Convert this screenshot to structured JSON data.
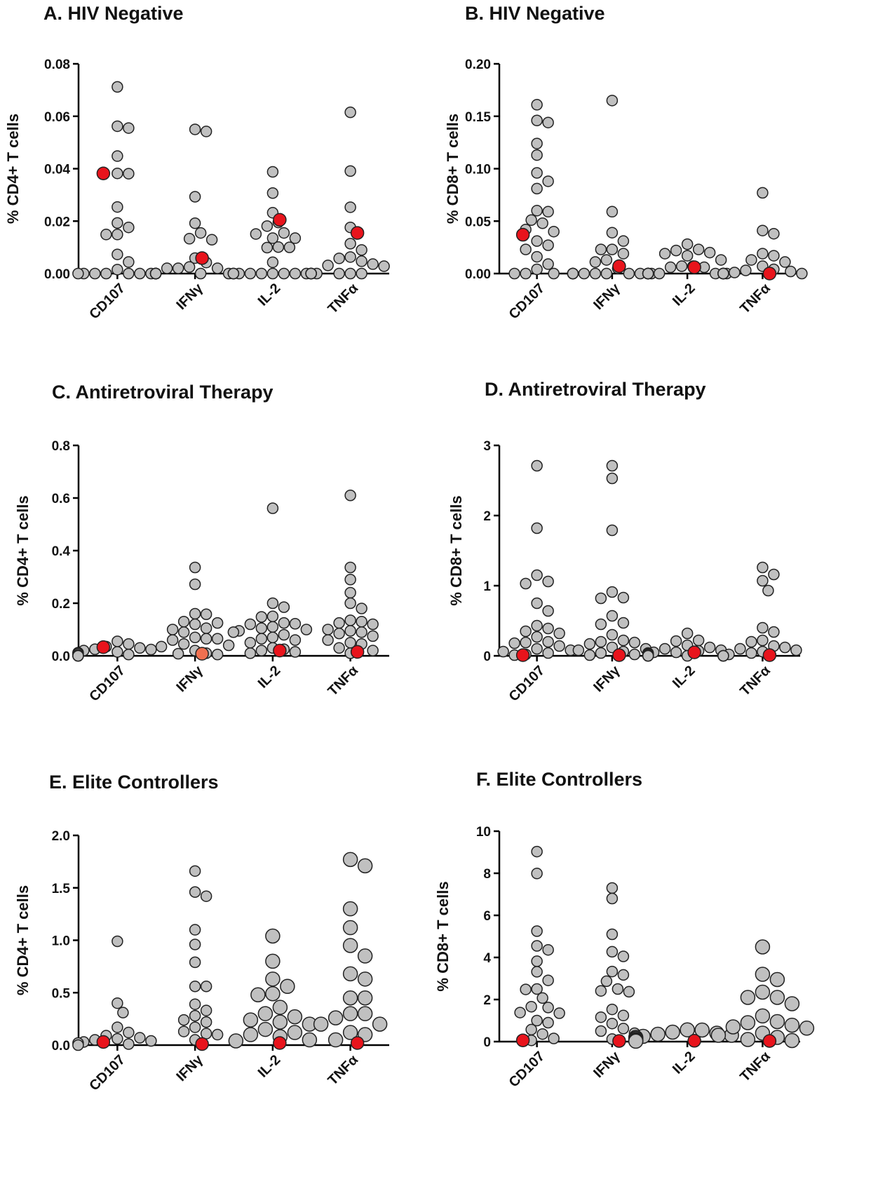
{
  "chart_data": [
    {
      "type": "scatter",
      "title": "A. HIV Negative",
      "ylabel": "% CD4+ T cells",
      "ylim": [
        0,
        0.08
      ],
      "yticks": [
        "0.00",
        "0.02",
        "0.04",
        "0.06",
        "0.08"
      ],
      "categories": [
        "CD107",
        "IFNγ",
        "IL-2",
        "TNFα"
      ],
      "highlight_color": "#e8141c",
      "point_color": "#c0c0c0",
      "series": [
        {
          "values": [
            0.0712,
            0.0562,
            0.0555,
            0.0448,
            0.0382,
            0.0381,
            0.0254,
            0.0193,
            0.0176,
            0.0149,
            0.0149,
            0.0073,
            0.0044,
            0.0015,
            0,
            0,
            0,
            0,
            0,
            0,
            0
          ]
        },
        {
          "values": [
            0.055,
            0.0542,
            0.0293,
            0.0192,
            0.0155,
            0.0133,
            0.0129,
            0.0059,
            0.0042,
            0.0025,
            0.002,
            0.002,
            0.002,
            0,
            0,
            0,
            0,
            0,
            0,
            0,
            0,
            0,
            0
          ]
        },
        {
          "values": [
            0.0388,
            0.0307,
            0.0232,
            0.0195,
            0.0181,
            0.0155,
            0.0151,
            0.0135,
            0.0135,
            0.0101,
            0.0099,
            0.01,
            0.0043,
            0,
            0,
            0,
            0,
            0,
            0,
            0,
            0,
            0,
            0
          ]
        },
        {
          "values": [
            0.0615,
            0.0391,
            0.0253,
            0.0176,
            0.0114,
            0.009,
            0.0063,
            0.0058,
            0.0047,
            0.0036,
            0.0031,
            0.0028,
            0,
            0,
            0,
            0,
            0,
            0,
            0,
            0,
            0
          ]
        }
      ],
      "highlight": [
        0.0382,
        0.0059,
        0.0205,
        0.0155
      ]
    },
    {
      "type": "scatter",
      "title": "B. HIV Negative",
      "ylabel": "% CD8+ T cells",
      "ylim": [
        0,
        0.2
      ],
      "yticks": [
        "0.00",
        "0.05",
        "0.10",
        "0.15",
        "0.20"
      ],
      "categories": [
        "CD107",
        "IFNγ",
        "IL-2",
        "TNFα"
      ],
      "highlight_color": "#e8141c",
      "point_color": "#c0c0c0",
      "series": [
        {
          "values": [
            0.161,
            0.146,
            0.144,
            0.124,
            0.113,
            0.096,
            0.088,
            0.081,
            0.06,
            0.059,
            0.051,
            0.048,
            0.042,
            0.04,
            0.031,
            0.027,
            0.023,
            0.016,
            0.009,
            0.004,
            0,
            0,
            0
          ]
        },
        {
          "values": [
            0.165,
            0.059,
            0.039,
            0.031,
            0.023,
            0.023,
            0.019,
            0.013,
            0.011,
            0.005,
            0,
            0,
            0,
            0,
            0,
            0,
            0,
            0,
            0,
            0
          ]
        },
        {
          "values": [
            0.028,
            0.023,
            0.022,
            0.02,
            0.019,
            0.017,
            0.013,
            0.007,
            0.007,
            0.006,
            0.006,
            0,
            0,
            0,
            0,
            0,
            0,
            0,
            0
          ]
        },
        {
          "values": [
            0.077,
            0.041,
            0.038,
            0.019,
            0.017,
            0.013,
            0.011,
            0.007,
            0.004,
            0.003,
            0.002,
            0.001,
            0,
            0,
            0,
            0,
            0,
            0,
            0
          ]
        }
      ],
      "highlight": [
        0.037,
        0.007,
        0.006,
        0
      ]
    },
    {
      "type": "scatter",
      "title": "C. Antiretroviral Therapy",
      "ylabel": "% CD4+ T cells",
      "ylim": [
        0,
        0.8
      ],
      "yticks": [
        "0.0",
        "0.2",
        "0.4",
        "0.6",
        "0.8"
      ],
      "categories": [
        "CD107",
        "IFNγ",
        "IL-2",
        "TNFα"
      ],
      "highlight_color": "#e8141c",
      "point_color": "#c0c0c0",
      "series": [
        {
          "values": [
            0.055,
            0.045,
            0.035,
            0.03,
            0.025,
            0.024,
            0.02,
            0.015,
            0.012,
            0.01,
            0.008,
            0.005,
            0.003,
            0.002,
            0.001,
            0,
            0,
            0
          ]
        },
        {
          "values": [
            0.336,
            0.272,
            0.16,
            0.158,
            0.13,
            0.125,
            0.12,
            0.105,
            0.1,
            0.09,
            0.07,
            0.065,
            0.065,
            0.06,
            0.045,
            0.04,
            0.035,
            0.02,
            0.01,
            0.008,
            0.005
          ]
        },
        {
          "values": [
            0.561,
            0.2,
            0.185,
            0.15,
            0.148,
            0.125,
            0.122,
            0.12,
            0.11,
            0.105,
            0.1,
            0.095,
            0.09,
            0.08,
            0.07,
            0.065,
            0.06,
            0.05,
            0.03,
            0.025,
            0.02,
            0.015,
            0.01
          ]
        },
        {
          "values": [
            0.61,
            0.336,
            0.29,
            0.24,
            0.2,
            0.18,
            0.135,
            0.13,
            0.125,
            0.12,
            0.1,
            0.095,
            0.09,
            0.085,
            0.075,
            0.06,
            0.05,
            0.045,
            0.03,
            0.02,
            0.01
          ]
        }
      ],
      "highlight": [
        0.033,
        0.008,
        0.02,
        0.015
      ],
      "highlight_colors": [
        "#e8141c",
        "#f07050",
        "#e8141c",
        "#e8141c"
      ]
    },
    {
      "type": "scatter",
      "title": "D. Antiretroviral Therapy",
      "ylabel": "% CD8+ T cells",
      "ylim": [
        0,
        3
      ],
      "yticks": [
        "0",
        "1",
        "2",
        "3"
      ],
      "categories": [
        "CD107",
        "IFNγ",
        "IL-2",
        "TNFα"
      ],
      "highlight_color": "#e8141c",
      "point_color": "#c0c0c0",
      "series": [
        {
          "values": [
            2.71,
            1.82,
            1.15,
            1.06,
            1.03,
            0.75,
            0.64,
            0.43,
            0.39,
            0.35,
            0.32,
            0.27,
            0.2,
            0.19,
            0.18,
            0.14,
            0.1,
            0.08,
            0.06,
            0.04,
            0.02,
            0.01
          ]
        },
        {
          "values": [
            2.71,
            2.53,
            1.79,
            0.91,
            0.83,
            0.82,
            0.57,
            0.47,
            0.45,
            0.3,
            0.22,
            0.2,
            0.19,
            0.17,
            0.12,
            0.1,
            0.08,
            0.06,
            0.04,
            0.02,
            0.01
          ]
        },
        {
          "values": [
            0.32,
            0.22,
            0.21,
            0.15,
            0.12,
            0.1,
            0.08,
            0.07,
            0.05,
            0.05,
            0.04,
            0.03,
            0.02,
            0.01,
            0,
            0,
            0,
            0
          ]
        },
        {
          "values": [
            1.26,
            1.16,
            1.07,
            0.93,
            0.4,
            0.34,
            0.22,
            0.2,
            0.14,
            0.12,
            0.1,
            0.08,
            0.06,
            0.04,
            0.02,
            0,
            0,
            0
          ]
        }
      ],
      "highlight": [
        0.01,
        0.01,
        0.05,
        0.01
      ]
    },
    {
      "type": "scatter",
      "title": "E. Elite Controllers",
      "ylabel": "% CD4+ T cells",
      "ylim": [
        0,
        2
      ],
      "yticks": [
        "0.0",
        "0.5",
        "1.0",
        "1.5",
        "2.0"
      ],
      "categories": [
        "CD107",
        "IFNγ",
        "IL-2",
        "TNFα"
      ],
      "highlight_color": "#e8141c",
      "point_color": "#c0c0c0",
      "series": [
        {
          "values": [
            0.99,
            0.4,
            0.31,
            0.17,
            0.12,
            0.09,
            0.07,
            0.06,
            0.05,
            0.04,
            0.03,
            0.02,
            0.01,
            0
          ]
        },
        {
          "values": [
            1.66,
            1.46,
            1.42,
            1.1,
            0.96,
            0.79,
            0.56,
            0.56,
            0.39,
            0.33,
            0.28,
            0.24,
            0.22,
            0.17,
            0.13,
            0.11,
            0.1,
            0.05
          ]
        },
        {
          "values": [
            1.04,
            0.8,
            0.63,
            0.56,
            0.49,
            0.48,
            0.36,
            0.3,
            0.27,
            0.24,
            0.22,
            0.2,
            0.15,
            0.12,
            0.1,
            0.08,
            0.05,
            0.04
          ]
        },
        {
          "values": [
            1.77,
            1.71,
            1.3,
            1.12,
            0.95,
            0.85,
            0.68,
            0.63,
            0.45,
            0.45,
            0.3,
            0.3,
            0.26,
            0.2,
            0.2,
            0.12,
            0.1,
            0.05
          ]
        }
      ],
      "highlight": [
        0.03,
        0.01,
        0.02,
        0.02
      ],
      "large_from_series": 2
    },
    {
      "type": "scatter",
      "title": "F. Elite Controllers",
      "ylabel": "% CD8+ T cells",
      "ylim": [
        0,
        10
      ],
      "yticks": [
        "0",
        "2",
        "4",
        "6",
        "8",
        "10"
      ],
      "categories": [
        "CD107",
        "IFNγ",
        "IL-2",
        "TNFα"
      ],
      "highlight_color": "#e8141c",
      "point_color": "#c0c0c0",
      "series": [
        {
          "values": [
            9.03,
            7.99,
            5.25,
            4.55,
            4.36,
            3.82,
            3.32,
            2.91,
            2.5,
            2.48,
            2.07,
            1.66,
            1.62,
            1.38,
            1.35,
            1.0,
            0.9,
            0.57,
            0.36,
            0.15,
            0.06
          ]
        },
        {
          "values": [
            7.3,
            6.8,
            5.1,
            4.27,
            4.05,
            3.33,
            3.17,
            2.87,
            2.5,
            2.41,
            2.37,
            1.53,
            1.24,
            1.16,
            0.86,
            0.62,
            0.5,
            0.4,
            0.12
          ]
        },
        {
          "values": [
            0.56,
            0.55,
            0.45,
            0.4,
            0.35,
            0.3,
            0.25,
            0.2,
            0.15,
            0.1,
            0.08,
            0.05,
            0.03,
            0.02
          ]
        },
        {
          "values": [
            4.5,
            3.2,
            2.95,
            2.35,
            2.1,
            2.1,
            1.8,
            1.22,
            0.95,
            0.9,
            0.78,
            0.7,
            0.64,
            0.4,
            0.3,
            0.2,
            0.1,
            0.05
          ]
        }
      ],
      "highlight": [
        0.06,
        0.03,
        0.04,
        0.03
      ],
      "large_from_series": 2
    }
  ]
}
